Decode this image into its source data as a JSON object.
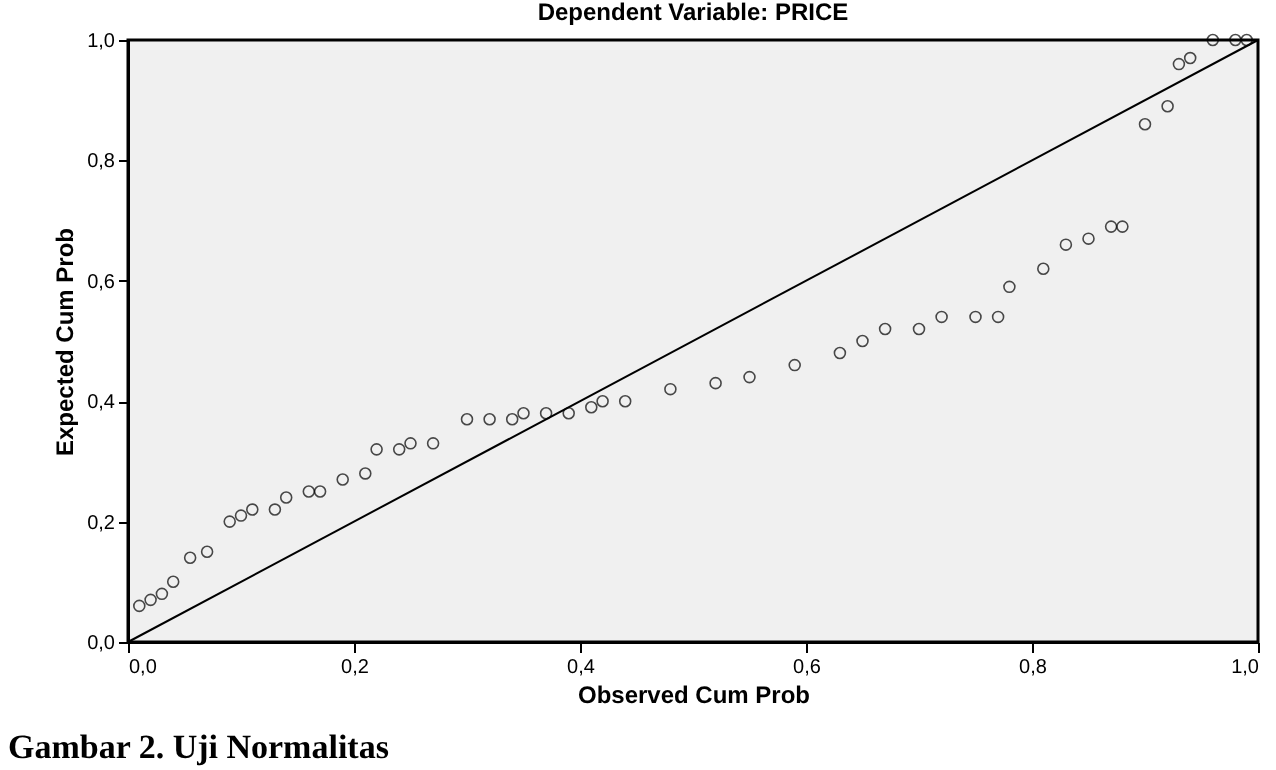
{
  "chart_data": {
    "type": "scatter",
    "title": "Dependent Variable: PRICE",
    "xlabel": "Observed Cum Prob",
    "ylabel": "Expected Cum Prob",
    "annotations": [
      "Gambar 2. Uji Normalitas"
    ],
    "marker": "none",
    "xlim": [
      0,
      1
    ],
    "ylim": [
      0,
      1
    ],
    "xticks": [
      {
        "value": 0,
        "label": "0,0"
      },
      {
        "value": 0.2,
        "label": "0,2"
      },
      {
        "value": 0.4,
        "label": "0,4"
      },
      {
        "value": 0.6,
        "label": "0,6"
      },
      {
        "value": 0.8,
        "label": "0,8"
      },
      {
        "value": 1,
        "label": "1,0"
      }
    ],
    "yticks": [
      {
        "value": 0,
        "label": "0,0"
      },
      {
        "value": 0.2,
        "label": "0,2"
      },
      {
        "value": 0.4,
        "label": "0,4"
      },
      {
        "value": 0.6,
        "label": "0,6"
      },
      {
        "value": 0.8,
        "label": "0,8"
      },
      {
        "value": 1,
        "label": "1,0"
      }
    ],
    "series": [
      {
        "color": "#000000",
        "marker": "circle",
        "x": [
          0.01,
          0.02,
          0.03,
          0.04,
          0.055,
          0.07,
          0.09,
          0.1,
          0.11,
          0.13,
          0.14,
          0.16,
          0.17,
          0.19,
          0.21,
          0.22,
          0.24,
          0.25,
          0.27,
          0.3,
          0.32,
          0.34,
          0.35,
          0.37,
          0.39,
          0.41,
          0.42,
          0.44,
          0.48,
          0.52,
          0.55,
          0.59,
          0.63,
          0.65,
          0.67,
          0.7,
          0.72,
          0.75,
          0.77,
          0.78,
          0.81,
          0.83,
          0.85,
          0.87,
          0.88,
          0.9,
          0.92,
          0.93,
          0.94,
          0.96,
          0.98,
          0.99
        ],
        "values": [
          0.06,
          0.07,
          0.08,
          0.1,
          0.14,
          0.15,
          0.2,
          0.21,
          0.22,
          0.22,
          0.24,
          0.25,
          0.25,
          0.27,
          0.28,
          0.32,
          0.32,
          0.33,
          0.33,
          0.37,
          0.37,
          0.37,
          0.38,
          0.38,
          0.38,
          0.39,
          0.4,
          0.4,
          0.42,
          0.43,
          0.44,
          0.46,
          0.48,
          0.5,
          0.52,
          0.52,
          0.54,
          0.54,
          0.54,
          0.59,
          0.62,
          0.66,
          0.67,
          0.69,
          0.69,
          0.86,
          0.89,
          0.96,
          0.97,
          1.0,
          1.0,
          1.0
        ]
      },
      {
        "type": "line",
        "color": "#000000",
        "x": [
          0,
          1
        ],
        "values": [
          0,
          1
        ]
      }
    ]
  }
}
